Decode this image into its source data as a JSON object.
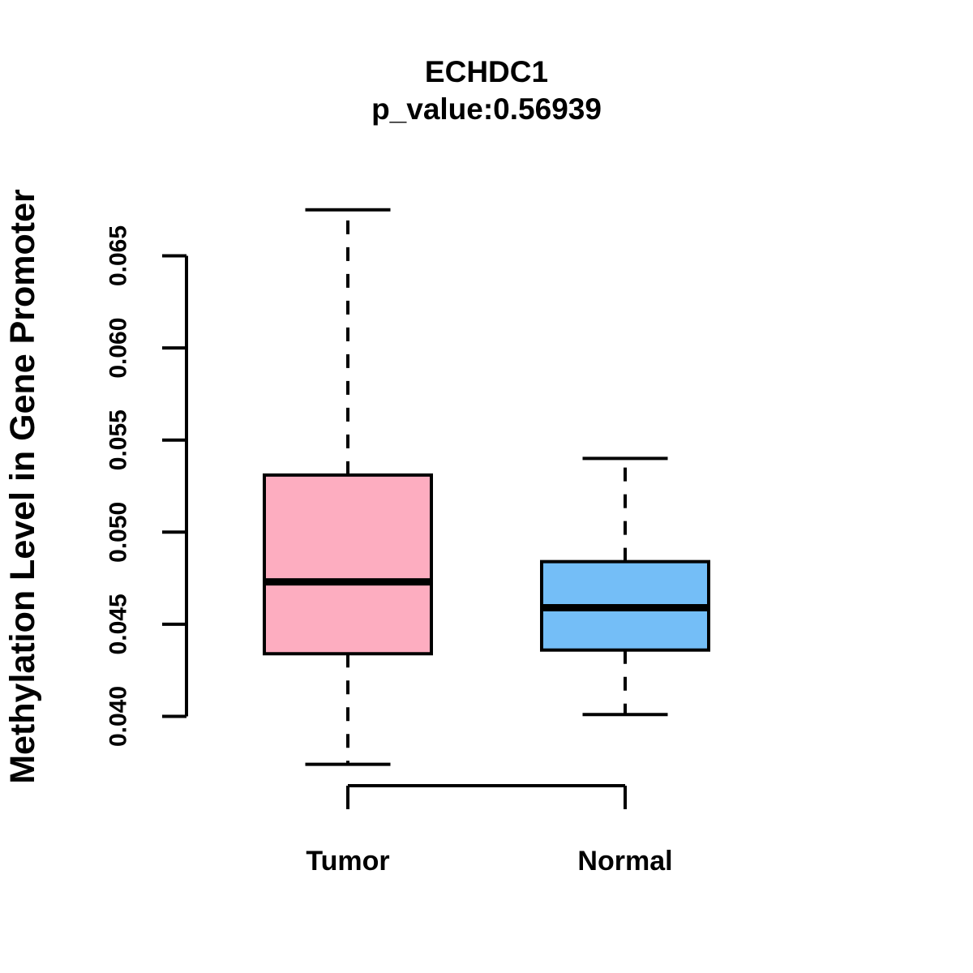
{
  "title": {
    "gene": "ECHDC1",
    "pvalue_line": "p_value:0.56939"
  },
  "y_axis": {
    "label": "Methylation Level in Gene Promoter",
    "tick_labels": [
      "0.040",
      "0.045",
      "0.050",
      "0.055",
      "0.060",
      "0.065"
    ],
    "tick_values": [
      0.04,
      0.045,
      0.05,
      0.055,
      0.06,
      0.065
    ]
  },
  "x_axis": {
    "categories": [
      "Tumor",
      "Normal"
    ]
  },
  "colors": {
    "tumor_fill": "#FDADC0",
    "normal_fill": "#74BEF7",
    "line": "#000000",
    "background": "#FFFFFF"
  },
  "chart_data": {
    "type": "boxplot",
    "title": "ECHDC1",
    "subtitle": "p_value:0.56939",
    "ylabel": "Methylation Level in Gene Promoter",
    "xlabel": "",
    "categories": [
      "Tumor",
      "Normal"
    ],
    "series": [
      {
        "name": "Tumor",
        "whisker_low": 0.0374,
        "q1": 0.0434,
        "median": 0.0473,
        "q3": 0.0531,
        "whisker_high": 0.0675,
        "fill": "#FDADC0"
      },
      {
        "name": "Normal",
        "whisker_low": 0.0401,
        "q1": 0.0436,
        "median": 0.0459,
        "q3": 0.0484,
        "whisker_high": 0.054,
        "fill": "#74BEF7"
      }
    ],
    "y_ticks": [
      0.04,
      0.045,
      0.05,
      0.055,
      0.06,
      0.065
    ],
    "ylim": [
      0.0374,
      0.0675
    ],
    "grid": false,
    "legend": "none"
  }
}
